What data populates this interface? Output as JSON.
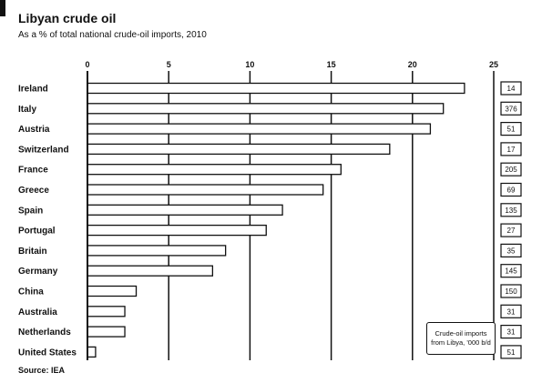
{
  "title": "Libyan crude oil",
  "subtitle": "As a % of total national crude-oil imports, 2010",
  "source": "Source: IEA",
  "annotation": "Crude-oil imports from Libya, '000 b/d",
  "chart_data": {
    "type": "bar",
    "orientation": "horizontal",
    "title": "Libyan crude oil",
    "subtitle": "As a % of total national crude-oil imports, 2010",
    "xlim": [
      0,
      25
    ],
    "xticks": [
      0,
      5,
      10,
      15,
      20,
      25
    ],
    "grid": true,
    "categories": [
      "Ireland",
      "Italy",
      "Austria",
      "Switzerland",
      "France",
      "Greece",
      "Spain",
      "Portugal",
      "Britain",
      "Germany",
      "China",
      "Australia",
      "Netherlands",
      "United States"
    ],
    "values": [
      23.2,
      21.9,
      21.1,
      18.6,
      15.6,
      14.5,
      12.0,
      11.0,
      8.5,
      7.7,
      3.0,
      2.3,
      2.3,
      0.5
    ],
    "side_values": [
      "14",
      "376",
      "51",
      "17",
      "205",
      "69",
      "135",
      "27",
      "35",
      "145",
      "150",
      "31",
      "31",
      "51"
    ]
  },
  "colors": {
    "ink": "#111111",
    "bar_fill": "#ffffff",
    "background": "#ffffff"
  }
}
